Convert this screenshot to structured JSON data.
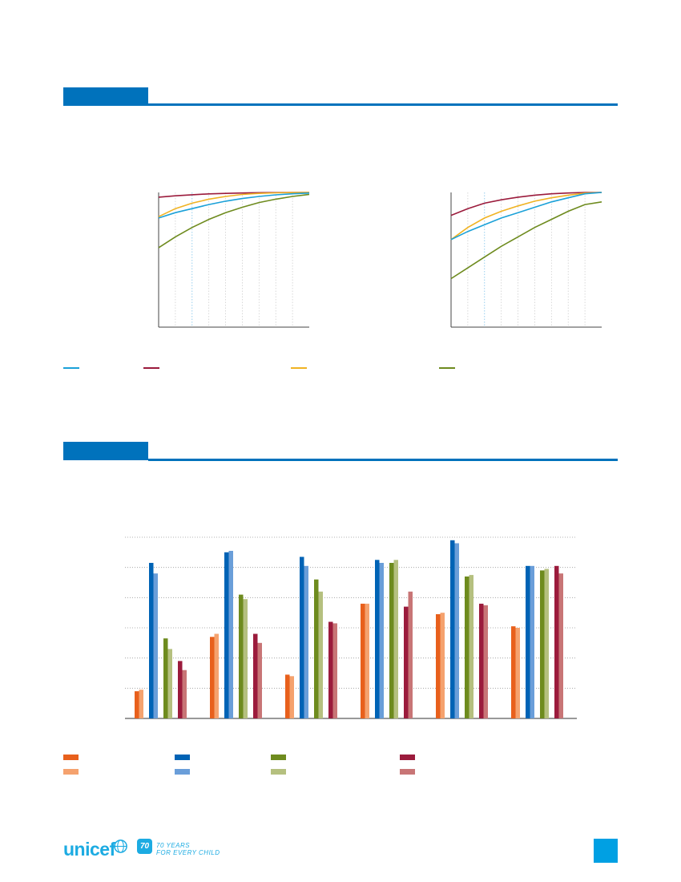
{
  "colors": {
    "section_blue": "#0072bc",
    "cyan": "#1ba1d8",
    "maroon": "#9b1b3c",
    "gold": "#f0b323",
    "olive": "#6e8b1e"
  },
  "section1": {
    "heading": ""
  },
  "section2": {
    "heading": ""
  },
  "chart_data": [
    {
      "type": "line",
      "ylim": [
        0,
        1
      ],
      "grid": "vertical dotted",
      "series": [
        {
          "color": "#9b1b3c",
          "values": [
            0.965,
            0.975,
            0.983,
            0.989,
            0.993,
            0.996,
            0.998,
            0.999,
            1.0,
            1.0
          ]
        },
        {
          "color": "#f0b323",
          "values": [
            0.82,
            0.88,
            0.92,
            0.95,
            0.97,
            0.985,
            0.993,
            0.997,
            0.999,
            1.0
          ]
        },
        {
          "color": "#1ba1d8",
          "values": [
            0.81,
            0.85,
            0.88,
            0.91,
            0.935,
            0.955,
            0.97,
            0.982,
            0.99,
            0.995
          ]
        },
        {
          "color": "#6e8b1e",
          "values": [
            0.59,
            0.67,
            0.74,
            0.8,
            0.85,
            0.89,
            0.925,
            0.95,
            0.97,
            0.985
          ]
        }
      ]
    },
    {
      "type": "line",
      "ylim": [
        0,
        1
      ],
      "grid": "vertical dotted",
      "series": [
        {
          "color": "#9b1b3c",
          "values": [
            0.83,
            0.88,
            0.92,
            0.945,
            0.965,
            0.98,
            0.99,
            0.996,
            1.0,
            1.0
          ]
        },
        {
          "color": "#f0b323",
          "values": [
            0.65,
            0.74,
            0.81,
            0.86,
            0.9,
            0.935,
            0.96,
            0.98,
            0.995,
            1.0
          ]
        },
        {
          "color": "#1ba1d8",
          "values": [
            0.65,
            0.71,
            0.76,
            0.81,
            0.85,
            0.89,
            0.93,
            0.96,
            0.99,
            1.0
          ]
        },
        {
          "color": "#6e8b1e",
          "values": [
            0.36,
            0.44,
            0.52,
            0.6,
            0.67,
            0.74,
            0.8,
            0.86,
            0.91,
            0.93
          ]
        }
      ]
    },
    {
      "type": "bar",
      "ylim": [
        0,
        6
      ],
      "grid": "horizontal dotted",
      "series": [
        {
          "color": "#e8601c",
          "values": [
            0.9,
            2.7,
            1.45,
            3.8,
            3.45,
            3.05
          ]
        },
        {
          "color": "#f5a26e",
          "values": [
            0.95,
            2.8,
            1.4,
            3.8,
            3.5,
            3.0
          ]
        },
        {
          "color": "#0063b5",
          "values": [
            5.15,
            5.5,
            5.35,
            5.25,
            5.9,
            5.05
          ]
        },
        {
          "color": "#6a9ed9",
          "values": [
            4.8,
            5.55,
            5.05,
            5.15,
            5.8,
            5.05
          ]
        },
        {
          "color": "#6e8b1e",
          "values": [
            2.65,
            4.1,
            4.6,
            5.15,
            4.7,
            4.9
          ]
        },
        {
          "color": "#b5c07f",
          "values": [
            2.3,
            3.95,
            4.2,
            5.25,
            4.75,
            4.95
          ]
        },
        {
          "color": "#9b1b3c",
          "values": [
            1.9,
            2.8,
            3.2,
            3.7,
            3.8,
            5.05
          ]
        },
        {
          "color": "#c87576",
          "values": [
            1.6,
            2.5,
            3.15,
            4.2,
            3.75,
            4.8
          ]
        }
      ]
    }
  ],
  "legend_top": [
    {
      "color": "#1ba1d8",
      "label": ""
    },
    {
      "color": "#9b1b3c",
      "label": ""
    },
    {
      "color": "#f0b323",
      "label": ""
    },
    {
      "color": "#6e8b1e",
      "label": ""
    }
  ],
  "legend_bottom": [
    {
      "color": "#e8601c",
      "label": ""
    },
    {
      "color": "#0063b5",
      "label": ""
    },
    {
      "color": "#6e8b1e",
      "label": ""
    },
    {
      "color": "#9b1b3c",
      "label": ""
    },
    {
      "color": "#f5a26e",
      "label": ""
    },
    {
      "color": "#6a9ed9",
      "label": ""
    },
    {
      "color": "#b5c07f",
      "label": ""
    },
    {
      "color": "#c87576",
      "label": ""
    }
  ],
  "footer": {
    "logo_text": "unicef",
    "badge_text": "70",
    "tagline_line1": "70 YEARS",
    "tagline_line2": "FOR EVERY CHILD"
  }
}
